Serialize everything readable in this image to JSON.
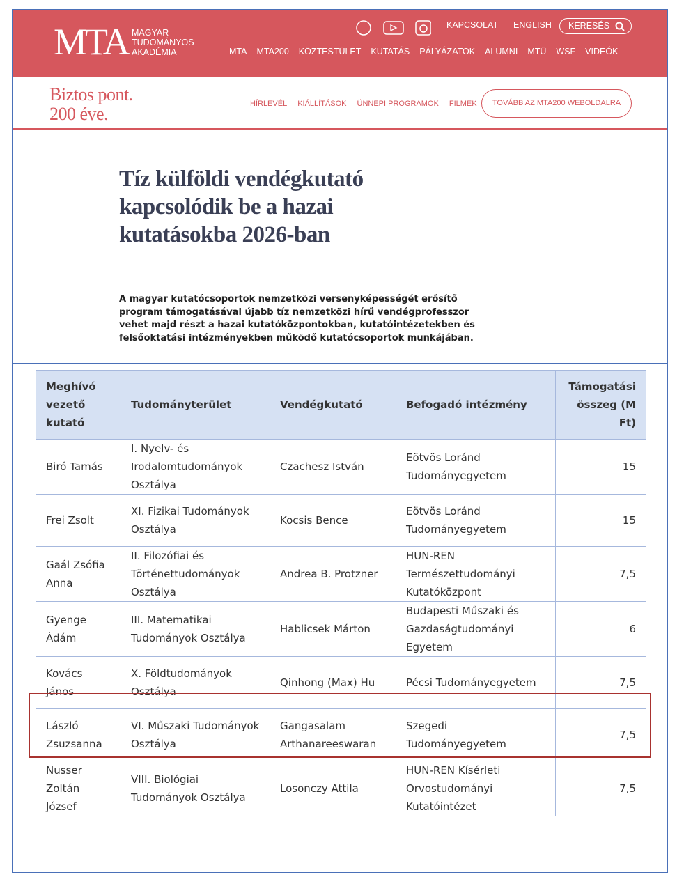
{
  "header": {
    "logo": "MTA",
    "logo_lines": [
      "MAGYAR",
      "TUDOMÁNYOS",
      "AKADÉMIA"
    ],
    "top_links": [
      "KAPCSOLAT",
      "ENGLISH"
    ],
    "search": "KERESÉS",
    "nav": [
      "MTA",
      "MTA200",
      "KÖZTESTÜLET",
      "KUTATÁS",
      "PÁLYÁZATOK",
      "ALUMNI",
      "MTÜ",
      "WSF",
      "VIDEÓK"
    ]
  },
  "subheader": {
    "slogan": [
      "Biztos pont.",
      "200 éve."
    ],
    "links": [
      "HÍRLEVÉL",
      "KIÁLLÍTÁSOK",
      "ÜNNEPI PROGRAMOK",
      "FILMEK"
    ],
    "button": "TOVÁBB AZ MTA200 WEBOLDALRA"
  },
  "article": {
    "title": "Tíz külföldi vendégkutató kapcsolódik be a hazai kutatásokba 2026-ban",
    "lead": "A magyar kutatócsoportok nemzetközi versenyképességét erősítő program támogatásával újabb tíz nemzetközi hírű vendégprofesszor vehet majd részt a hazai kutatóközpontokban, kutatóintézetekben és felsőoktatási intézményekben működő kutatócsoportok munkájában."
  },
  "table": {
    "header": [
      "Meghívó vezető kutató",
      "Tudományterület",
      "Vendégkutató",
      "Befogadó intézmény",
      "Támogatási összeg (M Ft)"
    ],
    "rows": [
      [
        "Biró Tamás",
        "I. Nyelv- és Irodalomtudományok Osztálya",
        "Czachesz István",
        "Eötvös Loránd Tudományegyetem",
        "15"
      ],
      [
        "Frei Zsolt",
        "XI. Fizikai Tudományok Osztálya",
        "Kocsis Bence",
        "Eötvös Loránd Tudományegyetem",
        "15"
      ],
      [
        "Gaál Zsófia Anna",
        "II. Filozófiai és Történettudományok Osztálya",
        "Andrea B. Protzner",
        "HUN-REN Természettudományi Kutatóközpont",
        "7,5"
      ],
      [
        "Gyenge Ádám",
        "III. Matematikai Tudományok Osztálya",
        "Hablicsek Márton",
        "Budapesti Műszaki és Gazdaságtudományi Egyetem",
        "6"
      ],
      [
        "Kovács János",
        "X. Földtudományok Osztálya",
        "Qinhong (Max) Hu",
        "Pécsi Tudományegyetem",
        "7,5"
      ],
      [
        "László Zsuzsanna",
        "VI. Műszaki Tudományok Osztálya",
        "Gangasalam Arthanareeswaran",
        "Szegedi Tudományegyetem",
        "7,5"
      ],
      [
        "Nusser Zoltán József",
        "VIII. Biológiai Tudományok Osztálya",
        "Losonczy Attila",
        "HUN-REN Kísérleti Orvostudományi Kutatóintézet",
        "7,5"
      ]
    ]
  }
}
